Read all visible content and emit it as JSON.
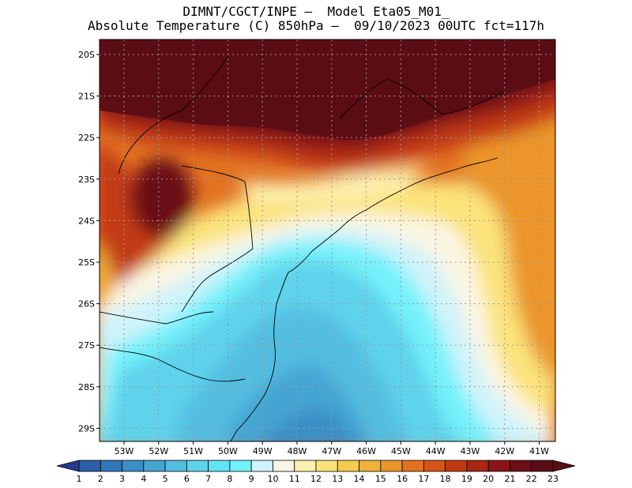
{
  "title_line1": "DIMNT/CGCT/INPE –  Model Eta05_M01_",
  "title_line2": "Absolute Temperature (C) 850hPa –  09/10/2023 00UTC fct=117h",
  "map": {
    "lat_labels": [
      "20S",
      "21S",
      "22S",
      "23S",
      "24S",
      "25S",
      "26S",
      "27S",
      "28S",
      "29S"
    ],
    "lon_labels": [
      "53W",
      "52W",
      "51W",
      "50W",
      "49W",
      "48W",
      "47W",
      "46W",
      "45W",
      "44W",
      "43W",
      "42W",
      "41W"
    ],
    "grid": "dotted"
  },
  "colorbar": {
    "labels": [
      "1",
      "2",
      "3",
      "4",
      "5",
      "6",
      "7",
      "8",
      "9",
      "10",
      "11",
      "12",
      "13",
      "14",
      "15",
      "16",
      "17",
      "18",
      "19",
      "20",
      "21",
      "22",
      "23"
    ],
    "colors": [
      "#233c8c",
      "#2a5ea8",
      "#3178b8",
      "#3a8fc6",
      "#45a5d2",
      "#52bde0",
      "#5ed3ec",
      "#62e3f6",
      "#74f2fb",
      "#cff3fb",
      "#fbf6e4",
      "#fdf0b0",
      "#fbe37a",
      "#f6cc50",
      "#f0b23a",
      "#eb952a",
      "#e27222",
      "#d55418",
      "#c23a12",
      "#a82612",
      "#8c1416",
      "#6b0e18",
      "#5a0d14"
    ]
  }
}
